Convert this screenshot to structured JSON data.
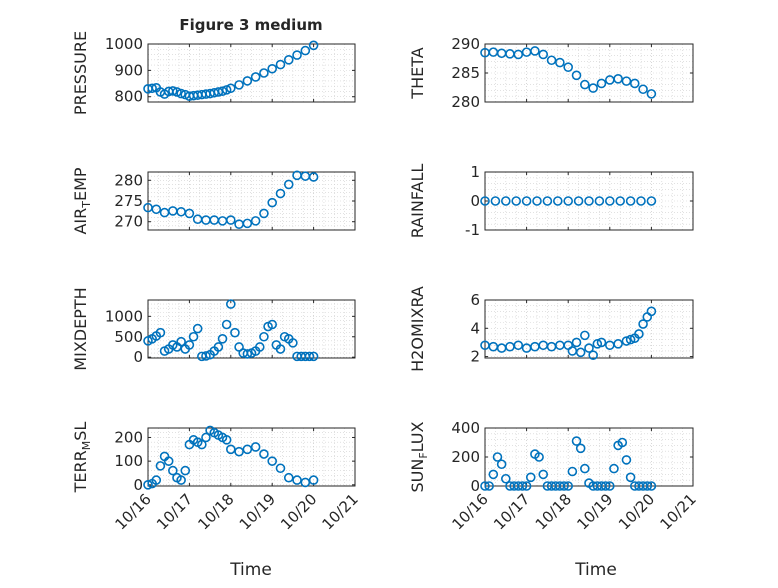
{
  "figure": {
    "title": "Figure 3 medium"
  },
  "colors": {
    "marker": "#0072BD",
    "axis": "#262626",
    "grid": "#cfcfcf"
  },
  "x_axis": {
    "tick_labels": [
      "10/16",
      "10/17",
      "10/18",
      "10/19",
      "10/20",
      "10/21"
    ],
    "xlabel": "Time"
  },
  "chart_data": [
    {
      "type": "scatter",
      "ylabel": "PRESSURE",
      "xlim": [
        0,
        5
      ],
      "ylim": [
        780,
        1000
      ],
      "yticks": [
        800,
        900,
        1000
      ],
      "ytick_labels": [
        "800",
        "900",
        "1000"
      ],
      "grid": true,
      "marker": "circle-open",
      "x": [
        0,
        0.1,
        0.2,
        0.3,
        0.4,
        0.5,
        0.6,
        0.7,
        0.8,
        0.9,
        1.0,
        1.1,
        1.2,
        1.3,
        1.4,
        1.5,
        1.6,
        1.7,
        1.8,
        1.9,
        2.0,
        2.2,
        2.4,
        2.6,
        2.8,
        3.0,
        3.2,
        3.4,
        3.6,
        3.8,
        4.0
      ],
      "y": [
        830,
        832,
        834,
        818,
        810,
        820,
        822,
        818,
        812,
        808,
        802,
        804,
        806,
        808,
        810,
        812,
        815,
        818,
        821,
        826,
        832,
        845,
        860,
        875,
        890,
        906,
        922,
        940,
        958,
        975,
        995
      ]
    },
    {
      "type": "scatter",
      "ylabel": "THETA",
      "xlim": [
        0,
        5
      ],
      "ylim": [
        280,
        290
      ],
      "yticks": [
        280,
        285,
        290
      ],
      "ytick_labels": [
        "280",
        "285",
        "290"
      ],
      "grid": true,
      "marker": "circle-open",
      "x": [
        0,
        0.2,
        0.4,
        0.6,
        0.8,
        1.0,
        1.2,
        1.4,
        1.6,
        1.8,
        2.0,
        2.2,
        2.4,
        2.6,
        2.8,
        3.0,
        3.2,
        3.4,
        3.6,
        3.8,
        4.0
      ],
      "y": [
        288.5,
        288.6,
        288.4,
        288.3,
        288.2,
        288.6,
        288.8,
        288.2,
        287.2,
        286.8,
        286.0,
        284.6,
        283.0,
        282.4,
        283.2,
        283.8,
        284.0,
        283.6,
        283.2,
        282.2,
        281.4
      ]
    },
    {
      "type": "scatter",
      "ylabel": "AIR_TEMP",
      "xlim": [
        0,
        5
      ],
      "ylim": [
        268,
        282
      ],
      "yticks": [
        270,
        275,
        280
      ],
      "ytick_labels": [
        "270",
        "275",
        "280"
      ],
      "grid": true,
      "marker": "circle-open",
      "x": [
        0,
        0.2,
        0.4,
        0.6,
        0.8,
        1.0,
        1.2,
        1.4,
        1.6,
        1.8,
        2.0,
        2.2,
        2.4,
        2.6,
        2.8,
        3.0,
        3.2,
        3.4,
        3.6,
        3.8,
        4.0
      ],
      "y": [
        273.4,
        273.0,
        272.2,
        272.6,
        272.4,
        272.0,
        270.6,
        270.4,
        270.4,
        270.2,
        270.4,
        269.4,
        269.6,
        270.2,
        272.0,
        274.6,
        276.8,
        279.0,
        281.2,
        281.0,
        280.8
      ]
    },
    {
      "type": "scatter",
      "ylabel": "RAINFALL",
      "xlim": [
        0,
        5
      ],
      "ylim": [
        -1,
        1
      ],
      "yticks": [
        -1,
        0,
        1
      ],
      "ytick_labels": [
        "-1",
        "0",
        "1"
      ],
      "grid": true,
      "marker": "circle-open",
      "x": [
        0,
        0.25,
        0.5,
        0.75,
        1.0,
        1.25,
        1.5,
        1.75,
        2.0,
        2.25,
        2.5,
        2.75,
        3.0,
        3.25,
        3.5,
        3.75,
        4.0
      ],
      "y": [
        0,
        0,
        0,
        0,
        0,
        0,
        0,
        0,
        0,
        0,
        0,
        0,
        0,
        0,
        0,
        0,
        0
      ]
    },
    {
      "type": "scatter",
      "ylabel": "MIXDEPTH",
      "xlim": [
        0,
        5
      ],
      "ylim": [
        -20,
        1400
      ],
      "yticks": [
        0,
        500,
        1000
      ],
      "ytick_labels": [
        "0",
        "500",
        "1000"
      ],
      "grid": true,
      "marker": "circle-open",
      "x": [
        0,
        0.1,
        0.2,
        0.3,
        0.4,
        0.5,
        0.6,
        0.7,
        0.8,
        0.9,
        1.0,
        1.1,
        1.2,
        1.3,
        1.4,
        1.5,
        1.6,
        1.7,
        1.8,
        1.9,
        2.0,
        2.1,
        2.2,
        2.3,
        2.4,
        2.5,
        2.6,
        2.7,
        2.8,
        2.9,
        3.0,
        3.1,
        3.2,
        3.3,
        3.4,
        3.5,
        3.6,
        3.7,
        3.8,
        3.9,
        4.0
      ],
      "y": [
        400,
        450,
        520,
        600,
        150,
        200,
        300,
        250,
        380,
        200,
        300,
        500,
        700,
        20,
        30,
        60,
        150,
        250,
        450,
        800,
        1300,
        600,
        250,
        100,
        80,
        100,
        150,
        250,
        500,
        750,
        800,
        300,
        200,
        500,
        450,
        350,
        20,
        20,
        20,
        20,
        20
      ]
    },
    {
      "type": "scatter",
      "ylabel": "H2OMIXRA",
      "xlim": [
        0,
        5
      ],
      "ylim": [
        1.9,
        6
      ],
      "yticks": [
        2,
        4,
        6
      ],
      "ytick_labels": [
        "2",
        "4",
        "6"
      ],
      "grid": true,
      "marker": "circle-open",
      "x": [
        0,
        0.2,
        0.4,
        0.6,
        0.8,
        1.0,
        1.2,
        1.4,
        1.6,
        1.8,
        2.0,
        2.1,
        2.2,
        2.3,
        2.4,
        2.5,
        2.6,
        2.7,
        2.8,
        3.0,
        3.2,
        3.4,
        3.5,
        3.6,
        3.7,
        3.8,
        3.9,
        4.0
      ],
      "y": [
        2.8,
        2.7,
        2.6,
        2.7,
        2.8,
        2.6,
        2.7,
        2.8,
        2.7,
        2.8,
        2.8,
        2.4,
        3.0,
        2.3,
        3.5,
        2.6,
        2.1,
        2.9,
        3.0,
        2.8,
        2.9,
        3.1,
        3.2,
        3.3,
        3.6,
        4.3,
        4.8,
        5.2
      ]
    },
    {
      "type": "scatter",
      "ylabel": "TERR_MSL",
      "xlim": [
        0,
        5
      ],
      "ylim": [
        -5,
        240
      ],
      "yticks": [
        0,
        100,
        200
      ],
      "ytick_labels": [
        "0",
        "100",
        "200"
      ],
      "grid": true,
      "marker": "circle-open",
      "x": [
        0,
        0.1,
        0.2,
        0.3,
        0.4,
        0.5,
        0.6,
        0.7,
        0.8,
        0.9,
        1.0,
        1.1,
        1.2,
        1.3,
        1.4,
        1.5,
        1.6,
        1.7,
        1.8,
        1.9,
        2.0,
        2.2,
        2.4,
        2.6,
        2.8,
        3.0,
        3.2,
        3.4,
        3.6,
        3.8,
        4.0
      ],
      "y": [
        0,
        5,
        20,
        80,
        120,
        100,
        60,
        30,
        20,
        60,
        170,
        190,
        180,
        170,
        200,
        230,
        220,
        210,
        200,
        190,
        150,
        140,
        150,
        160,
        130,
        100,
        70,
        30,
        20,
        10,
        20
      ]
    },
    {
      "type": "scatter",
      "ylabel": "SUN_FLUX",
      "xlim": [
        0,
        5
      ],
      "ylim": [
        0,
        400
      ],
      "yticks": [
        0,
        200,
        400
      ],
      "ytick_labels": [
        "0",
        "200",
        "400"
      ],
      "grid": true,
      "marker": "circle-open",
      "x": [
        0,
        0.1,
        0.2,
        0.3,
        0.4,
        0.5,
        0.6,
        0.7,
        0.8,
        0.9,
        1.0,
        1.1,
        1.2,
        1.3,
        1.4,
        1.5,
        1.6,
        1.7,
        1.8,
        1.9,
        2.0,
        2.1,
        2.2,
        2.3,
        2.4,
        2.5,
        2.6,
        2.7,
        2.8,
        2.9,
        3.0,
        3.1,
        3.2,
        3.3,
        3.4,
        3.5,
        3.6,
        3.7,
        3.8,
        3.9,
        4.0
      ],
      "y": [
        0,
        0,
        80,
        200,
        150,
        50,
        0,
        0,
        0,
        0,
        0,
        60,
        220,
        200,
        80,
        0,
        0,
        0,
        0,
        0,
        0,
        100,
        310,
        260,
        120,
        20,
        0,
        0,
        0,
        0,
        0,
        120,
        280,
        300,
        180,
        60,
        0,
        0,
        0,
        0,
        0
      ]
    }
  ]
}
